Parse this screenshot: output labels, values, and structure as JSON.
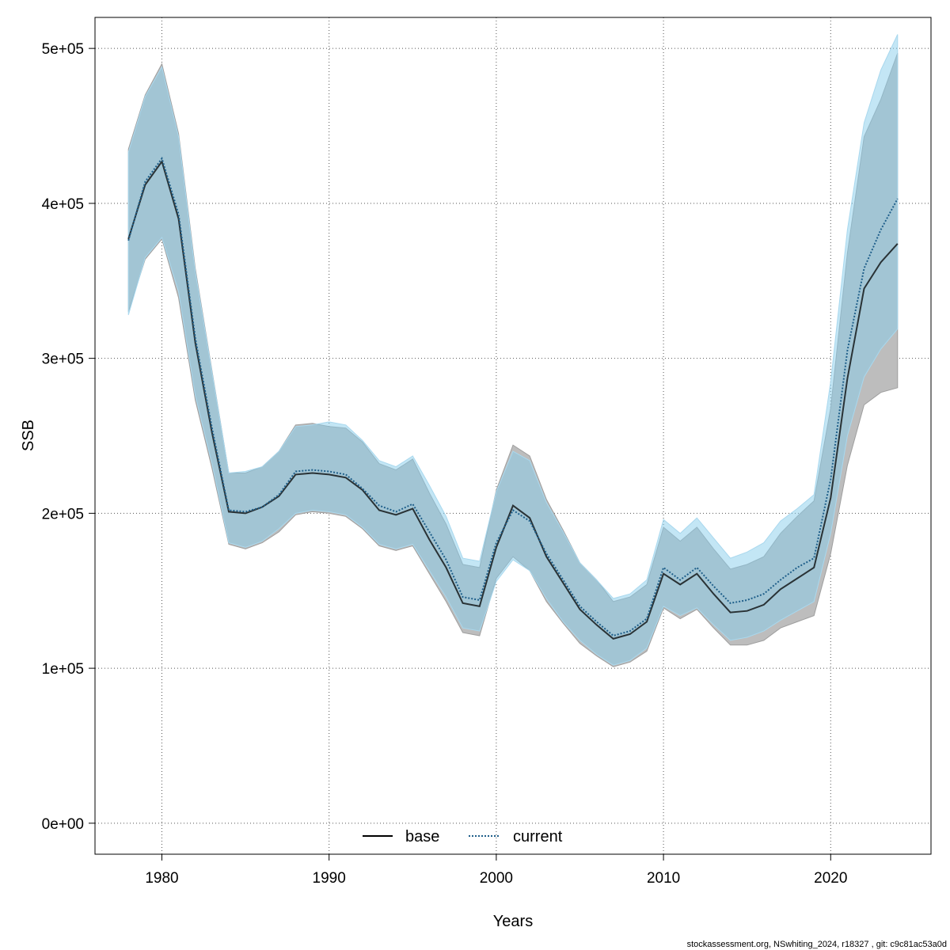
{
  "chart_data": {
    "type": "line",
    "title": "",
    "xlabel": "Years",
    "ylabel": "SSB",
    "xlim": [
      1976,
      2026
    ],
    "ylim": [
      -20000,
      520000
    ],
    "x_ticks": [
      1980,
      1990,
      2000,
      2010,
      2020
    ],
    "y_ticks": [
      0,
      100000,
      200000,
      300000,
      400000,
      500000
    ],
    "y_tick_labels": [
      "0e+00",
      "1e+05",
      "2e+05",
      "3e+05",
      "4e+05",
      "5e+05"
    ],
    "grid": true,
    "legend_position": "bottom-center",
    "x": [
      1978,
      1979,
      1980,
      1981,
      1982,
      1983,
      1984,
      1985,
      1986,
      1987,
      1988,
      1989,
      1990,
      1991,
      1992,
      1993,
      1994,
      1995,
      1996,
      1997,
      1998,
      1999,
      2000,
      2001,
      2002,
      2003,
      2004,
      2005,
      2006,
      2007,
      2008,
      2009,
      2010,
      2011,
      2012,
      2013,
      2014,
      2015,
      2016,
      2017,
      2018,
      2019,
      2020,
      2021,
      2022,
      2023,
      2024
    ],
    "series": [
      {
        "name": "base",
        "line_style": "solid",
        "line_color": "#000000",
        "band_color": "#bdbdbd",
        "values": [
          377000,
          412000,
          427000,
          390000,
          310000,
          252000,
          201000,
          200000,
          204000,
          211000,
          225000,
          226000,
          225000,
          223000,
          215000,
          202000,
          199000,
          203000,
          183000,
          165000,
          142000,
          140000,
          178000,
          205000,
          197000,
          172000,
          155000,
          138000,
          128000,
          119000,
          122000,
          130000,
          161000,
          154000,
          161000,
          148000,
          136000,
          137000,
          141000,
          151000,
          158000,
          165000,
          210000,
          287000,
          345000,
          362000,
          374000
        ],
        "lower": [
          330000,
          364000,
          377000,
          339000,
          273000,
          229000,
          180000,
          177000,
          181000,
          188000,
          199000,
          201000,
          200000,
          198000,
          190000,
          179000,
          176000,
          179000,
          161000,
          143000,
          123000,
          121000,
          158000,
          172000,
          163000,
          143000,
          129000,
          116000,
          108000,
          101000,
          104000,
          111000,
          139000,
          132000,
          138000,
          126000,
          115000,
          115000,
          118000,
          126000,
          130000,
          134000,
          174000,
          231000,
          270000,
          278000,
          281000
        ],
        "upper": [
          435000,
          470000,
          490000,
          445000,
          358000,
          292000,
          226000,
          226000,
          230000,
          240000,
          257000,
          258000,
          256000,
          255000,
          246000,
          232000,
          228000,
          235000,
          213000,
          193000,
          167000,
          165000,
          215000,
          244000,
          237000,
          209000,
          189000,
          168000,
          157000,
          143000,
          146000,
          154000,
          191000,
          182000,
          191000,
          177000,
          164000,
          167000,
          172000,
          187000,
          198000,
          208000,
          268000,
          368000,
          443000,
          467000,
          497000
        ]
      },
      {
        "name": "current",
        "line_style": "dotted",
        "line_color": "#1f5f8a",
        "band_color": "#87ceeb",
        "values": [
          376000,
          414000,
          429000,
          393000,
          313000,
          255000,
          202000,
          201000,
          204000,
          212000,
          227000,
          228000,
          227000,
          225000,
          216000,
          205000,
          201000,
          206000,
          188000,
          170000,
          146000,
          144000,
          181000,
          202000,
          195000,
          174000,
          157000,
          140000,
          130000,
          121000,
          124000,
          132000,
          165000,
          157000,
          165000,
          153000,
          142000,
          144000,
          148000,
          157000,
          165000,
          171000,
          222000,
          305000,
          358000,
          383000,
          403000
        ],
        "lower": [
          328000,
          365000,
          378000,
          343000,
          276000,
          232000,
          181000,
          178000,
          182000,
          190000,
          200000,
          202000,
          201000,
          199000,
          191000,
          180000,
          177000,
          180000,
          163000,
          146000,
          126000,
          124000,
          156000,
          170000,
          163000,
          145000,
          130000,
          118000,
          109000,
          102000,
          105000,
          113000,
          140000,
          134000,
          139000,
          128000,
          118000,
          120000,
          124000,
          131000,
          137000,
          143000,
          187000,
          250000,
          288000,
          306000,
          319000
        ],
        "upper": [
          433000,
          469000,
          488000,
          443000,
          356000,
          291000,
          226000,
          227000,
          230000,
          240000,
          256000,
          257000,
          259000,
          257000,
          247000,
          234000,
          230000,
          237000,
          218000,
          198000,
          171000,
          169000,
          214000,
          240000,
          234000,
          207000,
          188000,
          168000,
          157000,
          145000,
          148000,
          157000,
          196000,
          187000,
          197000,
          184000,
          171000,
          175000,
          181000,
          195000,
          203000,
          212000,
          285000,
          383000,
          452000,
          486000,
          509000
        ]
      }
    ]
  },
  "footer": {
    "note": "stockassessment.org, NSwhiting_2024, r18327 , git: c9c81ac53a0d"
  }
}
